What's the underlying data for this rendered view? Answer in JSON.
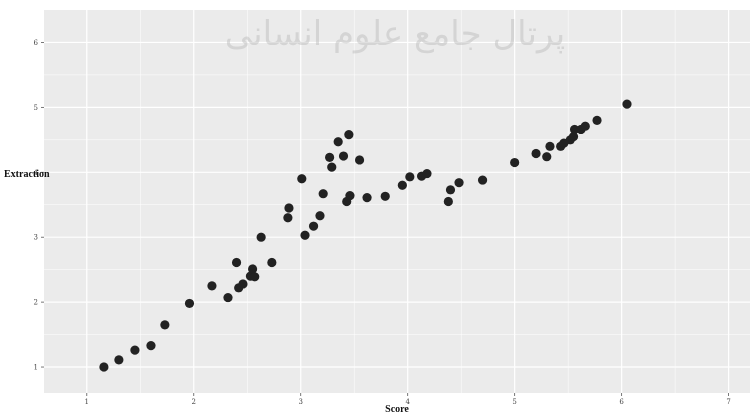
{
  "watermark": {
    "text": "پرتال جامع علوم انسانی"
  },
  "chart_data": {
    "type": "scatter",
    "xlabel": "Score",
    "ylabel": "Extraction",
    "xlim": [
      0.6,
      7.2
    ],
    "ylim": [
      0.6,
      6.5
    ],
    "x_ticks": [
      1,
      2,
      3,
      4,
      5,
      6,
      7
    ],
    "y_ticks": [
      1,
      2,
      3,
      4,
      5,
      6
    ],
    "grid": true,
    "legend": "none",
    "colors": {
      "point": "#222222",
      "panel": "#ebebeb",
      "grid": "#ffffff"
    },
    "points": [
      {
        "x": 1.16,
        "y": 1.0
      },
      {
        "x": 1.3,
        "y": 1.11
      },
      {
        "x": 1.45,
        "y": 1.26
      },
      {
        "x": 1.6,
        "y": 1.33
      },
      {
        "x": 1.73,
        "y": 1.65
      },
      {
        "x": 1.96,
        "y": 1.98
      },
      {
        "x": 2.17,
        "y": 2.25
      },
      {
        "x": 2.32,
        "y": 2.07
      },
      {
        "x": 2.4,
        "y": 2.61
      },
      {
        "x": 2.42,
        "y": 2.22
      },
      {
        "x": 2.46,
        "y": 2.28
      },
      {
        "x": 2.53,
        "y": 2.4
      },
      {
        "x": 2.55,
        "y": 2.51
      },
      {
        "x": 2.57,
        "y": 2.39
      },
      {
        "x": 2.63,
        "y": 3.0
      },
      {
        "x": 2.73,
        "y": 2.61
      },
      {
        "x": 2.88,
        "y": 3.3
      },
      {
        "x": 2.89,
        "y": 3.45
      },
      {
        "x": 3.01,
        "y": 3.9
      },
      {
        "x": 3.04,
        "y": 3.03
      },
      {
        "x": 3.12,
        "y": 3.17
      },
      {
        "x": 3.18,
        "y": 3.33
      },
      {
        "x": 3.21,
        "y": 3.67
      },
      {
        "x": 3.27,
        "y": 4.23
      },
      {
        "x": 3.29,
        "y": 4.08
      },
      {
        "x": 3.35,
        "y": 4.47
      },
      {
        "x": 3.4,
        "y": 4.25
      },
      {
        "x": 3.43,
        "y": 3.55
      },
      {
        "x": 3.45,
        "y": 4.58
      },
      {
        "x": 3.46,
        "y": 3.64
      },
      {
        "x": 3.55,
        "y": 4.19
      },
      {
        "x": 3.62,
        "y": 3.61
      },
      {
        "x": 3.79,
        "y": 3.63
      },
      {
        "x": 3.95,
        "y": 3.8
      },
      {
        "x": 4.02,
        "y": 3.93
      },
      {
        "x": 4.13,
        "y": 3.94
      },
      {
        "x": 4.18,
        "y": 3.98
      },
      {
        "x": 4.38,
        "y": 3.55
      },
      {
        "x": 4.4,
        "y": 3.73
      },
      {
        "x": 4.48,
        "y": 3.84
      },
      {
        "x": 4.7,
        "y": 3.88
      },
      {
        "x": 5.0,
        "y": 4.15
      },
      {
        "x": 5.2,
        "y": 4.29
      },
      {
        "x": 5.3,
        "y": 4.24
      },
      {
        "x": 5.33,
        "y": 4.4
      },
      {
        "x": 5.43,
        "y": 4.4
      },
      {
        "x": 5.46,
        "y": 4.45
      },
      {
        "x": 5.52,
        "y": 4.5
      },
      {
        "x": 5.55,
        "y": 4.55
      },
      {
        "x": 5.56,
        "y": 4.66
      },
      {
        "x": 5.62,
        "y": 4.66
      },
      {
        "x": 5.66,
        "y": 4.71
      },
      {
        "x": 5.77,
        "y": 4.8
      },
      {
        "x": 6.05,
        "y": 5.05
      }
    ]
  }
}
